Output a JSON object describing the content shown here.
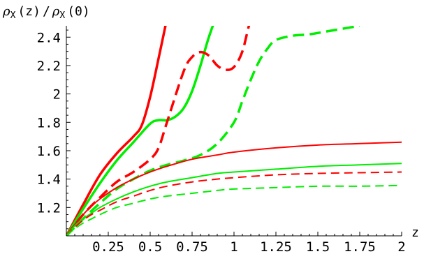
{
  "chart_data": {
    "type": "line",
    "title": "",
    "ylabel": {
      "rho": "ρ",
      "sub": "X",
      "num_arg": "(z)",
      "slash": "/",
      "den_arg": "(0)"
    },
    "xlabel": "z",
    "xlim": [
      0,
      2
    ],
    "ylim": [
      1,
      2.48
    ],
    "x_ticks": [
      {
        "value": 0.25,
        "label": "0.25"
      },
      {
        "value": 0.5,
        "label": "0.5"
      },
      {
        "value": 0.75,
        "label": "0.75"
      },
      {
        "value": 1,
        "label": "1"
      },
      {
        "value": 1.25,
        "label": "1.25"
      },
      {
        "value": 1.5,
        "label": "1.5"
      },
      {
        "value": 1.75,
        "label": "1.75"
      },
      {
        "value": 2,
        "label": "2"
      }
    ],
    "y_ticks": [
      {
        "value": 1.2,
        "label": "1.2"
      },
      {
        "value": 1.4,
        "label": "1.4"
      },
      {
        "value": 1.6,
        "label": "1.6"
      },
      {
        "value": 1.8,
        "label": "1.8"
      },
      {
        "value": 2,
        "label": "2"
      },
      {
        "value": 2.2,
        "label": "2.2"
      },
      {
        "value": 2.4,
        "label": "2.4"
      }
    ],
    "grid": false,
    "legend": "none",
    "series": [
      {
        "color": "#ff0000",
        "style": "solid",
        "weight": "thick",
        "x": [
          0,
          0.1,
          0.2,
          0.3,
          0.4,
          0.45,
          0.5,
          0.55,
          0.6
        ],
        "y": [
          1.0,
          1.22,
          1.43,
          1.58,
          1.7,
          1.78,
          1.98,
          2.25,
          2.53
        ]
      },
      {
        "color": "#00ee00",
        "style": "solid",
        "weight": "thick",
        "x": [
          0,
          0.1,
          0.2,
          0.3,
          0.4,
          0.5,
          0.55,
          0.6,
          0.65,
          0.7,
          0.75,
          0.8,
          0.85,
          0.9,
          0.95
        ],
        "y": [
          1.0,
          1.19,
          1.37,
          1.53,
          1.66,
          1.79,
          1.815,
          1.815,
          1.84,
          1.9,
          2.02,
          2.2,
          2.4,
          2.55,
          2.58
        ]
      },
      {
        "color": "#ff0000",
        "style": "dashed",
        "weight": "thick",
        "x": [
          0,
          0.1,
          0.2,
          0.3,
          0.4,
          0.5,
          0.55,
          0.6,
          0.7,
          0.75,
          0.8,
          0.85,
          0.9,
          0.95,
          1.0,
          1.05,
          1.1,
          1.15
        ],
        "y": [
          1.0,
          1.15,
          1.27,
          1.38,
          1.45,
          1.54,
          1.62,
          1.8,
          2.16,
          2.26,
          2.295,
          2.27,
          2.2,
          2.17,
          2.19,
          2.3,
          2.52,
          2.58
        ]
      },
      {
        "color": "#00ee00",
        "style": "dashed",
        "weight": "thick",
        "x": [
          0,
          0.1,
          0.2,
          0.3,
          0.4,
          0.5,
          0.6,
          0.7,
          0.8,
          0.9,
          1.0,
          1.05,
          1.1,
          1.15,
          1.2,
          1.25,
          1.35,
          1.45,
          1.55,
          1.65,
          1.75
        ],
        "y": [
          1.0,
          1.12,
          1.23,
          1.33,
          1.4,
          1.46,
          1.5,
          1.53,
          1.57,
          1.65,
          1.8,
          1.95,
          2.1,
          2.23,
          2.32,
          2.38,
          2.41,
          2.42,
          2.44,
          2.46,
          2.48
        ]
      },
      {
        "color": "#ff0000",
        "style": "solid",
        "weight": "thin",
        "x": [
          0,
          0.05,
          0.1,
          0.15,
          0.2,
          0.3,
          0.4,
          0.5,
          0.6,
          0.75,
          0.9,
          1.0,
          1.25,
          1.5,
          1.75,
          2.0
        ],
        "y": [
          1.0,
          1.08,
          1.15,
          1.21,
          1.26,
          1.34,
          1.4,
          1.45,
          1.49,
          1.54,
          1.57,
          1.59,
          1.62,
          1.64,
          1.65,
          1.66
        ]
      },
      {
        "color": "#00ee00",
        "style": "solid",
        "weight": "thin",
        "x": [
          0,
          0.05,
          0.1,
          0.15,
          0.2,
          0.3,
          0.4,
          0.5,
          0.6,
          0.75,
          0.9,
          1.0,
          1.25,
          1.5,
          1.75,
          2.0
        ],
        "y": [
          1.0,
          1.07,
          1.12,
          1.16,
          1.2,
          1.26,
          1.31,
          1.35,
          1.38,
          1.41,
          1.44,
          1.45,
          1.47,
          1.49,
          1.5,
          1.51
        ]
      },
      {
        "color": "#ff0000",
        "style": "dashed",
        "weight": "thin",
        "x": [
          0,
          0.05,
          0.1,
          0.15,
          0.2,
          0.3,
          0.4,
          0.5,
          0.6,
          0.75,
          0.9,
          1.0,
          1.25,
          1.5,
          1.75,
          2.0
        ],
        "y": [
          1.0,
          1.06,
          1.11,
          1.15,
          1.18,
          1.24,
          1.28,
          1.32,
          1.35,
          1.38,
          1.4,
          1.41,
          1.43,
          1.44,
          1.445,
          1.45
        ]
      },
      {
        "color": "#00ee00",
        "style": "dashed",
        "weight": "thin",
        "x": [
          0,
          0.05,
          0.1,
          0.15,
          0.2,
          0.3,
          0.4,
          0.5,
          0.6,
          0.75,
          0.9,
          1.0,
          1.25,
          1.5,
          1.75,
          2.0
        ],
        "y": [
          1.0,
          1.05,
          1.09,
          1.12,
          1.15,
          1.2,
          1.23,
          1.26,
          1.28,
          1.3,
          1.32,
          1.33,
          1.34,
          1.35,
          1.35,
          1.355
        ]
      }
    ]
  }
}
